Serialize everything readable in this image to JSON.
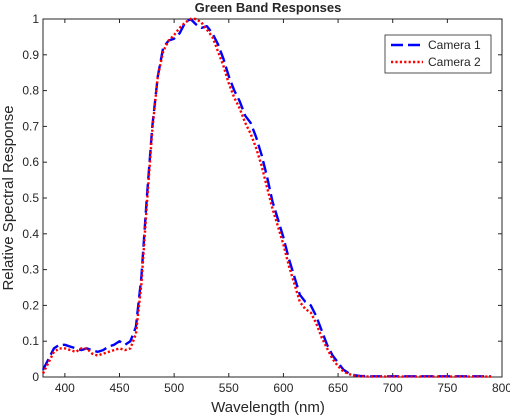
{
  "chart_data": {
    "type": "line",
    "title": "Green Band Responses",
    "xlabel": "Wavelength (nm)",
    "ylabel": "Relative Spectral Response",
    "xlim": [
      380,
      800
    ],
    "ylim": [
      0,
      1
    ],
    "xticks": [
      400,
      450,
      500,
      550,
      600,
      650,
      700,
      750,
      800
    ],
    "yticks": [
      0,
      0.1,
      0.2,
      0.3,
      0.4,
      0.5,
      0.6,
      0.7,
      0.8,
      0.9,
      1
    ],
    "xtick_labels": [
      "400",
      "450",
      "500",
      "550",
      "600",
      "650",
      "700",
      "750",
      "800"
    ],
    "ytick_labels": [
      "0",
      "0.1",
      "0.2",
      "0.3",
      "0.4",
      "0.5",
      "0.6",
      "0.7",
      "0.8",
      "0.9",
      "1"
    ],
    "grid": false,
    "legend_position": "top-right",
    "series": [
      {
        "name": "Camera 1",
        "color": "#0000ff",
        "style": "dashed",
        "x": [
          380,
          385,
          390,
          395,
          400,
          405,
          410,
          415,
          420,
          425,
          430,
          435,
          440,
          445,
          450,
          455,
          460,
          465,
          470,
          475,
          480,
          485,
          490,
          495,
          500,
          505,
          510,
          515,
          520,
          525,
          530,
          535,
          540,
          545,
          550,
          555,
          560,
          565,
          570,
          575,
          580,
          585,
          590,
          595,
          600,
          605,
          610,
          615,
          620,
          625,
          630,
          635,
          640,
          645,
          650,
          655,
          660,
          665,
          670,
          680,
          690,
          700,
          720,
          740,
          760,
          780,
          790
        ],
        "y": [
          0.02,
          0.05,
          0.08,
          0.09,
          0.09,
          0.085,
          0.08,
          0.075,
          0.08,
          0.075,
          0.07,
          0.075,
          0.085,
          0.09,
          0.1,
          0.09,
          0.1,
          0.14,
          0.28,
          0.5,
          0.7,
          0.84,
          0.92,
          0.94,
          0.945,
          0.96,
          0.99,
          1.0,
          0.985,
          0.975,
          0.98,
          0.96,
          0.93,
          0.89,
          0.84,
          0.8,
          0.77,
          0.73,
          0.71,
          0.67,
          0.62,
          0.56,
          0.49,
          0.44,
          0.39,
          0.33,
          0.28,
          0.23,
          0.21,
          0.2,
          0.17,
          0.13,
          0.09,
          0.06,
          0.04,
          0.02,
          0.01,
          0.005,
          0.003,
          0.002,
          0.002,
          0.002,
          0.002,
          0.002,
          0.002,
          0.002,
          0.002
        ]
      },
      {
        "name": "Camera 2",
        "color": "#ff0000",
        "style": "dotted",
        "x": [
          380,
          385,
          390,
          395,
          400,
          405,
          410,
          415,
          420,
          425,
          430,
          435,
          440,
          445,
          450,
          455,
          460,
          465,
          470,
          475,
          480,
          485,
          490,
          495,
          500,
          505,
          510,
          515,
          520,
          525,
          530,
          535,
          540,
          545,
          550,
          555,
          560,
          565,
          570,
          575,
          580,
          585,
          590,
          595,
          600,
          605,
          610,
          615,
          620,
          625,
          630,
          635,
          640,
          645,
          650,
          655,
          660,
          665,
          670,
          680,
          690,
          700,
          720,
          740,
          760,
          780,
          790
        ],
        "y": [
          0.01,
          0.04,
          0.07,
          0.08,
          0.08,
          0.075,
          0.07,
          0.08,
          0.08,
          0.065,
          0.06,
          0.065,
          0.07,
          0.075,
          0.08,
          0.075,
          0.08,
          0.12,
          0.26,
          0.48,
          0.69,
          0.84,
          0.91,
          0.94,
          0.955,
          0.975,
          0.99,
          1.0,
          1.0,
          0.99,
          0.97,
          0.95,
          0.91,
          0.87,
          0.82,
          0.78,
          0.75,
          0.71,
          0.68,
          0.64,
          0.59,
          0.53,
          0.47,
          0.42,
          0.37,
          0.31,
          0.26,
          0.21,
          0.19,
          0.18,
          0.15,
          0.11,
          0.08,
          0.05,
          0.03,
          0.015,
          0.008,
          0.004,
          0.002,
          0.001,
          0.001,
          0.001,
          0.001,
          0.001,
          0.001,
          0.001,
          0.001
        ]
      }
    ]
  }
}
